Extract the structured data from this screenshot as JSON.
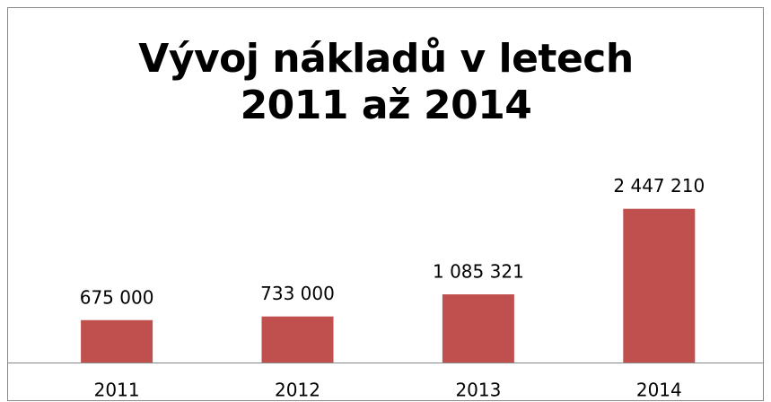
{
  "chart_data": {
    "type": "bar",
    "title": "Vývoj nákladů v letech 2011 až 2014",
    "categories": [
      "2011",
      "2012",
      "2013",
      "2014"
    ],
    "values": [
      675000,
      733000,
      1085321,
      2447210
    ],
    "value_labels": [
      "675 000",
      "733 000",
      "1 085 321",
      "2 447 210"
    ],
    "color": "#c0504d",
    "ylim": [
      0,
      3000000
    ]
  }
}
